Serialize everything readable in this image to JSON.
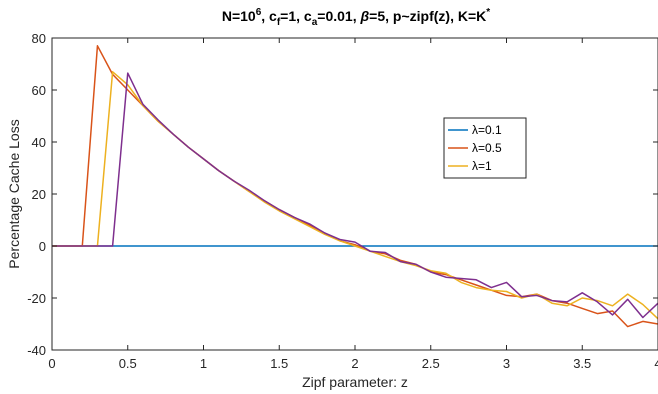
{
  "chart_data": {
    "type": "line",
    "title": "N=10^6, c_f=1, c_a=0.01, β=5, p~zipf(z), K=K*",
    "title_parts": {
      "t1": "N=10",
      "t1_sup": "6",
      "t2": ", c",
      "t2_sub": "f",
      "t3": "=1, c",
      "t3_sub": "a",
      "t4": "=0.01, ",
      "t4_beta": "β",
      "t5": "=5, p~zipf(z), K=K",
      "t5_sup": "*"
    },
    "xlabel": "Zipf parameter: z",
    "ylabel": "Percentage Cache Loss",
    "xlim": [
      0,
      4
    ],
    "ylim": [
      -40,
      80
    ],
    "xticks": [
      0,
      0.5,
      1,
      1.5,
      2,
      2.5,
      3,
      3.5,
      4
    ],
    "xtick_labels": [
      "0",
      "0.5",
      "1",
      "1.5",
      "2",
      "2.5",
      "3",
      "3.5",
      "4"
    ],
    "yticks": [
      -40,
      -20,
      0,
      20,
      40,
      60,
      80
    ],
    "ytick_labels": [
      "-40",
      "-20",
      "0",
      "20",
      "40",
      "60",
      "80"
    ],
    "grid": false,
    "legend_position": "upper-right",
    "series": [
      {
        "name": "λ=0.1",
        "color": "#0072bd",
        "x": [
          0,
          4
        ],
        "y": [
          0,
          0
        ]
      },
      {
        "name": "λ=0.5",
        "color": "#d95319",
        "x": [
          0,
          0.1,
          0.2,
          0.3,
          0.4,
          0.5,
          0.6,
          0.7,
          0.8,
          0.9,
          1.0,
          1.1,
          1.2,
          1.3,
          1.4,
          1.5,
          1.6,
          1.7,
          1.8,
          1.9,
          2.0,
          2.1,
          2.2,
          2.3,
          2.4,
          2.5,
          2.6,
          2.7,
          2.8,
          2.9,
          3.0,
          3.1,
          3.2,
          3.3,
          3.4,
          3.5,
          3.6,
          3.7,
          3.8,
          3.9,
          4.0
        ],
        "y": [
          0,
          0,
          0,
          77,
          66,
          60,
          54,
          48,
          43,
          38,
          33.5,
          29,
          25,
          21,
          17.5,
          14,
          11,
          8,
          5,
          2,
          0.5,
          -2,
          -3,
          -5.5,
          -7,
          -10,
          -11,
          -13,
          -15,
          -17,
          -19,
          -19.5,
          -18.5,
          -21,
          -22,
          -24,
          -26,
          -25,
          -31,
          -29,
          -30
        ]
      },
      {
        "name": "λ=1",
        "color": "#edb120",
        "x": [
          0,
          0.1,
          0.2,
          0.3,
          0.4,
          0.5,
          0.6,
          0.7,
          0.8,
          0.9,
          1.0,
          1.1,
          1.2,
          1.3,
          1.4,
          1.5,
          1.6,
          1.7,
          1.8,
          1.9,
          2.0,
          2.1,
          2.2,
          2.3,
          2.4,
          2.5,
          2.6,
          2.7,
          2.8,
          2.9,
          3.0,
          3.1,
          3.2,
          3.3,
          3.4,
          3.5,
          3.6,
          3.7,
          3.8,
          3.9,
          4.0
        ],
        "y": [
          0,
          0,
          0,
          0,
          67,
          62,
          54,
          48,
          43,
          38,
          33.5,
          29,
          25,
          21,
          17,
          13.5,
          10.5,
          7.5,
          4.5,
          2,
          0,
          -2,
          -4,
          -6,
          -7.5,
          -9.5,
          -10.5,
          -14,
          -16,
          -17,
          -17.5,
          -20,
          -18.5,
          -22,
          -23,
          -20,
          -21,
          -23,
          -18.5,
          -22.5,
          -28
        ]
      },
      {
        "name": "",
        "color": "#7e2f8e",
        "x": [
          0,
          0.1,
          0.2,
          0.3,
          0.4,
          0.5,
          0.6,
          0.7,
          0.8,
          0.9,
          1.0,
          1.1,
          1.2,
          1.3,
          1.4,
          1.5,
          1.6,
          1.7,
          1.8,
          1.9,
          2.0,
          2.1,
          2.2,
          2.3,
          2.4,
          2.5,
          2.6,
          2.7,
          2.8,
          2.9,
          3.0,
          3.1,
          3.2,
          3.3,
          3.4,
          3.5,
          3.6,
          3.7,
          3.8,
          3.9,
          4.0
        ],
        "y": [
          0,
          0,
          0,
          0,
          0,
          66.5,
          54.5,
          48.5,
          43,
          38,
          33.5,
          29,
          25,
          21.5,
          17.5,
          14,
          11,
          8.5,
          5,
          2.5,
          1.5,
          -2,
          -2.5,
          -6,
          -7,
          -10,
          -12,
          -12.5,
          -13,
          -16,
          -14,
          -19.5,
          -19,
          -21,
          -21.5,
          -18,
          -21.5,
          -26.5,
          -20.5,
          -27.5,
          -22
        ]
      }
    ]
  }
}
